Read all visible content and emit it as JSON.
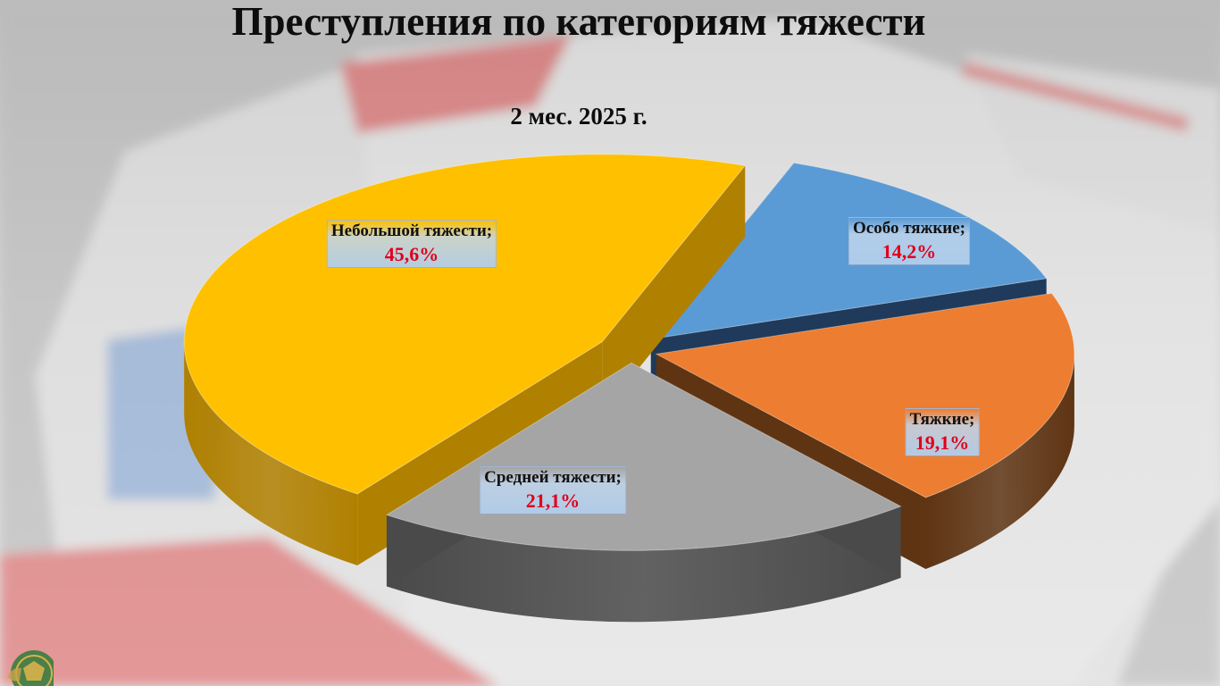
{
  "chart_data": {
    "type": "pie",
    "title": "Преступления по категориям тяжести",
    "subtitle": "2 мес. 2025 г.",
    "slices": [
      {
        "name": "Особо тяжкие;",
        "value": 14.2,
        "label": "14,2%",
        "color": "#5b9bd5",
        "side_color": "#1f3a5a"
      },
      {
        "name": "Тяжкие;",
        "value": 19.1,
        "label": "19,1%",
        "color": "#ed7d31",
        "side_color": "#5e3413"
      },
      {
        "name": "Средней тяжести;",
        "value": 21.1,
        "label": "21,1%",
        "color": "#a5a5a5",
        "side_color": "#4a4a4a"
      },
      {
        "name": "Небольшой тяжести;",
        "value": 45.6,
        "label": "45,6%",
        "color": "#ffc000",
        "side_color": "#b08000"
      }
    ],
    "exploded": true,
    "legend": "none",
    "style": "3d"
  },
  "colors": {
    "title_text": "#0d0d0d",
    "value_text": "#e0001a",
    "label_background": "#b0cdec"
  },
  "icons": {
    "corner_emblem": "emblem-icon"
  }
}
